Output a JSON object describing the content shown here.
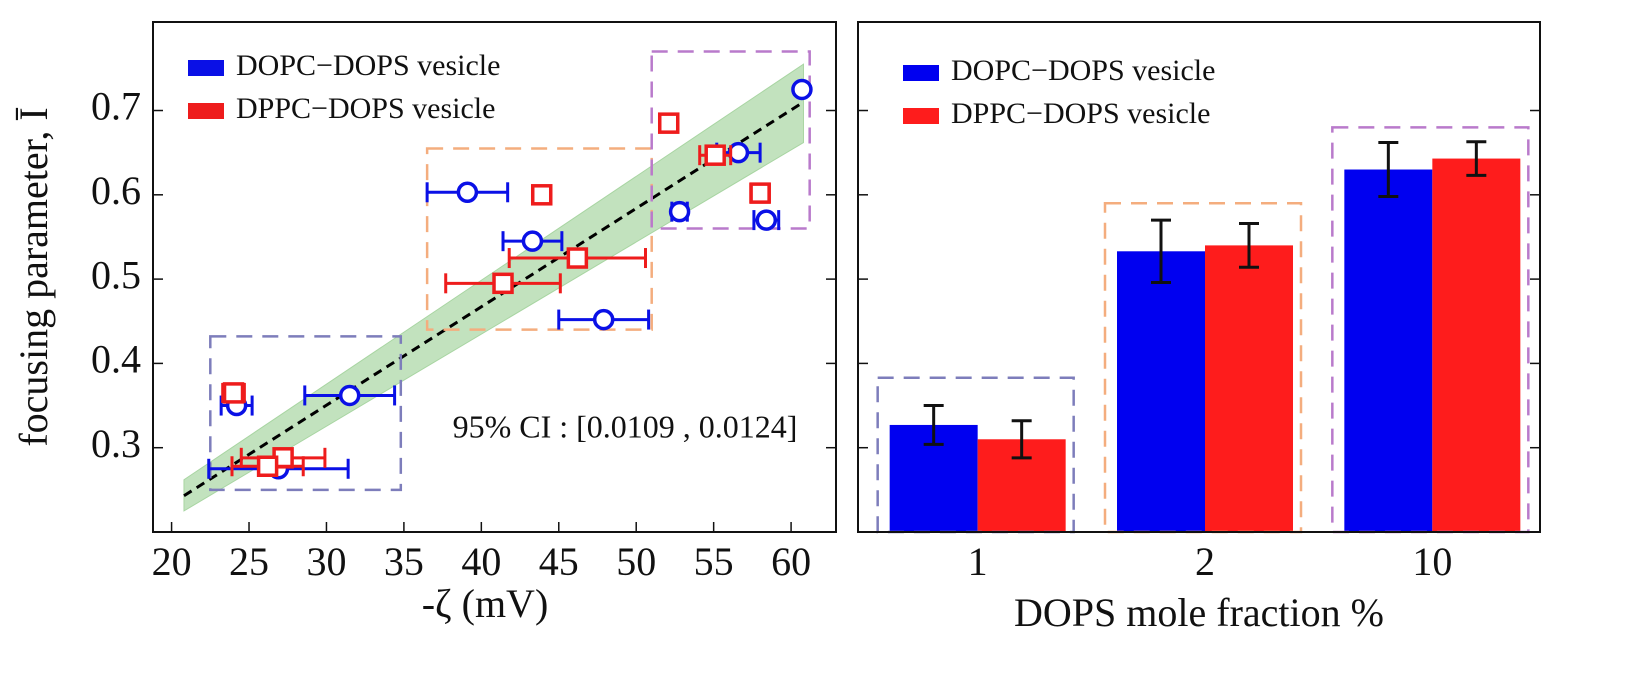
{
  "chart_data": [
    {
      "type": "scatter",
      "xlabel": "-ζ (mV)",
      "ylabel": "focusing parameter, Ī",
      "xlim": [
        18.8,
        62.9
      ],
      "ylim": [
        0.2,
        0.805
      ],
      "xticks": [
        20,
        25,
        30,
        35,
        40,
        45,
        50,
        55,
        60
      ],
      "yticks": [
        0.3,
        0.4,
        0.5,
        0.6,
        0.7
      ],
      "annotation": "95% CI : [0.0109 , 0.0124]",
      "series": [
        {
          "name": "DOPC−DOPS vesicle",
          "color": "#0a10e6",
          "marker": "circle",
          "x": [
            39.1,
            43.3,
            47.9,
            52.8,
            56.6,
            58.4,
            60.7,
            24.2,
            31.5,
            26.9
          ],
          "values": [
            0.603,
            0.545,
            0.452,
            0.58,
            0.65,
            0.57,
            0.725,
            0.35,
            0.362,
            0.275
          ],
          "xerr": [
            2.6,
            1.9,
            2.9,
            0.5,
            1.4,
            0.8,
            0,
            1.0,
            2.9,
            4.5
          ]
        },
        {
          "name": "DPPC−DOPS vesicle",
          "color": "#ee1c1c",
          "marker": "square",
          "x": [
            43.9,
            46.2,
            41.4,
            52.1,
            55.1,
            58.0,
            24.0,
            27.2,
            26.2
          ],
          "values": [
            0.6,
            0.525,
            0.495,
            0.685,
            0.647,
            0.602,
            0.365,
            0.288,
            0.278
          ],
          "xerr": [
            0.4,
            4.4,
            3.7,
            0.5,
            1.0,
            0.6,
            0.7,
            2.7,
            2.3
          ]
        }
      ],
      "fit": {
        "x": [
          20.8,
          60.8
        ],
        "y": [
          0.243,
          0.71
        ]
      },
      "band": {
        "color": "#a8d5a2",
        "x": [
          20.8,
          60.8
        ],
        "upper": [
          0.262,
          0.755
        ],
        "lower": [
          0.225,
          0.662
        ]
      },
      "regions": [
        {
          "color": "#7d7dbb",
          "x": [
            22.5,
            34.8
          ],
          "y": [
            0.25,
            0.432
          ]
        },
        {
          "color": "#f4ad7e",
          "x": [
            36.5,
            51.0
          ],
          "y": [
            0.44,
            0.655
          ]
        },
        {
          "color": "#b97acb",
          "x": [
            51.0,
            61.2
          ],
          "y": [
            0.56,
            0.77
          ]
        }
      ]
    },
    {
      "type": "bar",
      "xlabel": "DOPS mole fraction %",
      "categories": [
        "1",
        "2",
        "10"
      ],
      "ylim": [
        0.2,
        0.805
      ],
      "yticks": [
        0.3,
        0.4,
        0.5,
        0.6,
        0.7
      ],
      "series": [
        {
          "name": "DOPC−DOPS vesicle",
          "color": "#0000f0",
          "values": [
            0.327,
            0.533,
            0.63
          ],
          "errors": [
            0.023,
            0.037,
            0.032
          ]
        },
        {
          "name": "DPPC−DOPS vesicle",
          "color": "#fe1c1c",
          "values": [
            0.31,
            0.54,
            0.643
          ],
          "errors": [
            0.022,
            0.026,
            0.02
          ]
        }
      ],
      "regions": [
        {
          "color": "#7d7dbb",
          "top": 0.383
        },
        {
          "color": "#f4ad7e",
          "top": 0.59
        },
        {
          "color": "#b97acb",
          "top": 0.68
        }
      ]
    }
  ]
}
